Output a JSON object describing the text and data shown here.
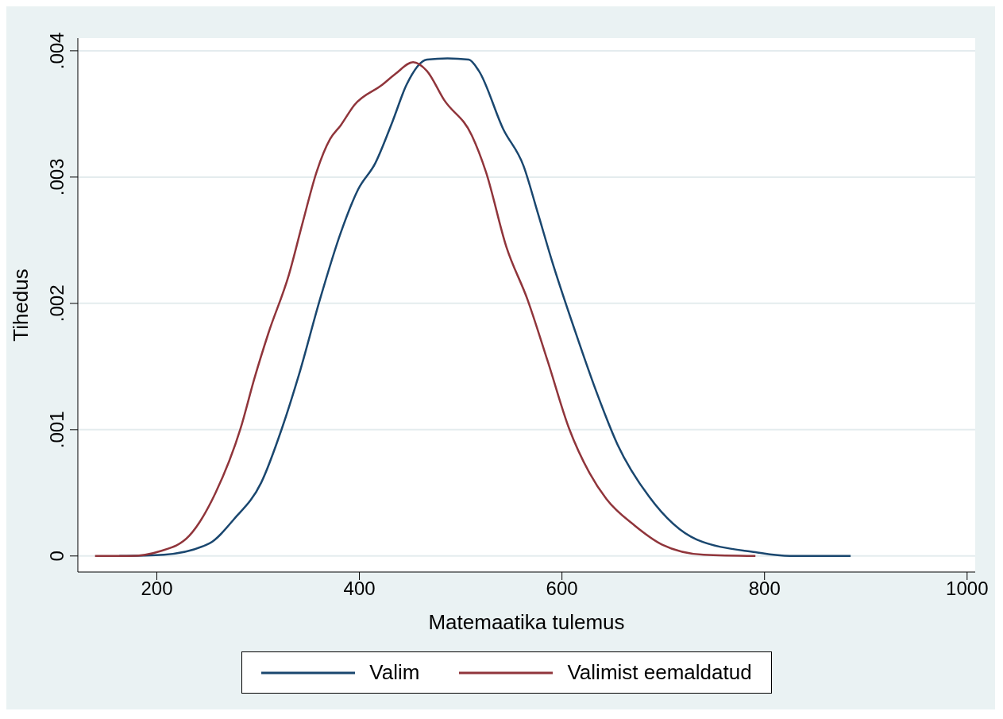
{
  "chart_data": {
    "type": "line",
    "xlabel": "Matemaatika tulemus",
    "ylabel": "Tihedus",
    "xlim": [
      122,
      1008
    ],
    "xticks": [
      200,
      400,
      600,
      800,
      1000
    ],
    "ylim": [
      -0.000127,
      0.0041
    ],
    "yticks": [
      {
        "value": 0,
        "label": "0"
      },
      {
        "value": 0.001,
        "label": ".001"
      },
      {
        "value": 0.002,
        "label": ".002"
      },
      {
        "value": 0.003,
        "label": ".003"
      },
      {
        "value": 0.004,
        "label": ".004"
      }
    ],
    "grid": "y",
    "legend": "bottom",
    "marker": "none",
    "line_style": "solid",
    "series": [
      {
        "name": "Valim",
        "color": "#1a476f",
        "x": [
          163,
          207,
          252,
          276,
          303,
          323.5,
          340.5,
          361,
          381.6,
          398.6,
          415.7,
          432.7,
          446.5,
          466.7,
          487,
          508,
          518,
          542,
          562,
          576,
          590,
          613,
          634,
          655,
          686,
          733,
          791,
          825,
          885
        ],
        "values": [
          0,
          1e-05,
          0.0001,
          0.00029,
          0.00058,
          0.00101,
          0.00144,
          0.00203,
          0.00256,
          0.0029,
          0.00311,
          0.00344,
          0.00373,
          0.00393,
          0.00394,
          0.00393,
          0.00384,
          0.00338,
          0.00309,
          0.00272,
          0.00234,
          0.00178,
          0.0013,
          0.00088,
          0.00047,
          0.00013,
          3e-05,
          0,
          0
        ]
      },
      {
        "name": "Valimist eemaldatud",
        "color": "#90353b",
        "x": [
          139,
          173,
          204,
          232,
          258,
          282.7,
          296.5,
          310,
          330.5,
          344,
          357.7,
          371,
          381.6,
          395,
          422.5,
          436,
          453,
          466.7,
          483.7,
          511,
          525,
          545,
          566,
          586,
          607,
          627,
          644,
          672,
          699,
          740,
          791
        ],
        "values": [
          0,
          0,
          4e-05,
          0.00016,
          0.0005,
          0.00101,
          0.00141,
          0.00176,
          0.00223,
          0.00264,
          0.00304,
          0.0033,
          0.00341,
          0.00357,
          0.00373,
          0.00382,
          0.00391,
          0.00384,
          0.00361,
          0.00333,
          0.00304,
          0.00245,
          0.00203,
          0.00154,
          0.00101,
          0.00066,
          0.00045,
          0.00024,
          9e-05,
          1e-05,
          0
        ]
      }
    ]
  }
}
